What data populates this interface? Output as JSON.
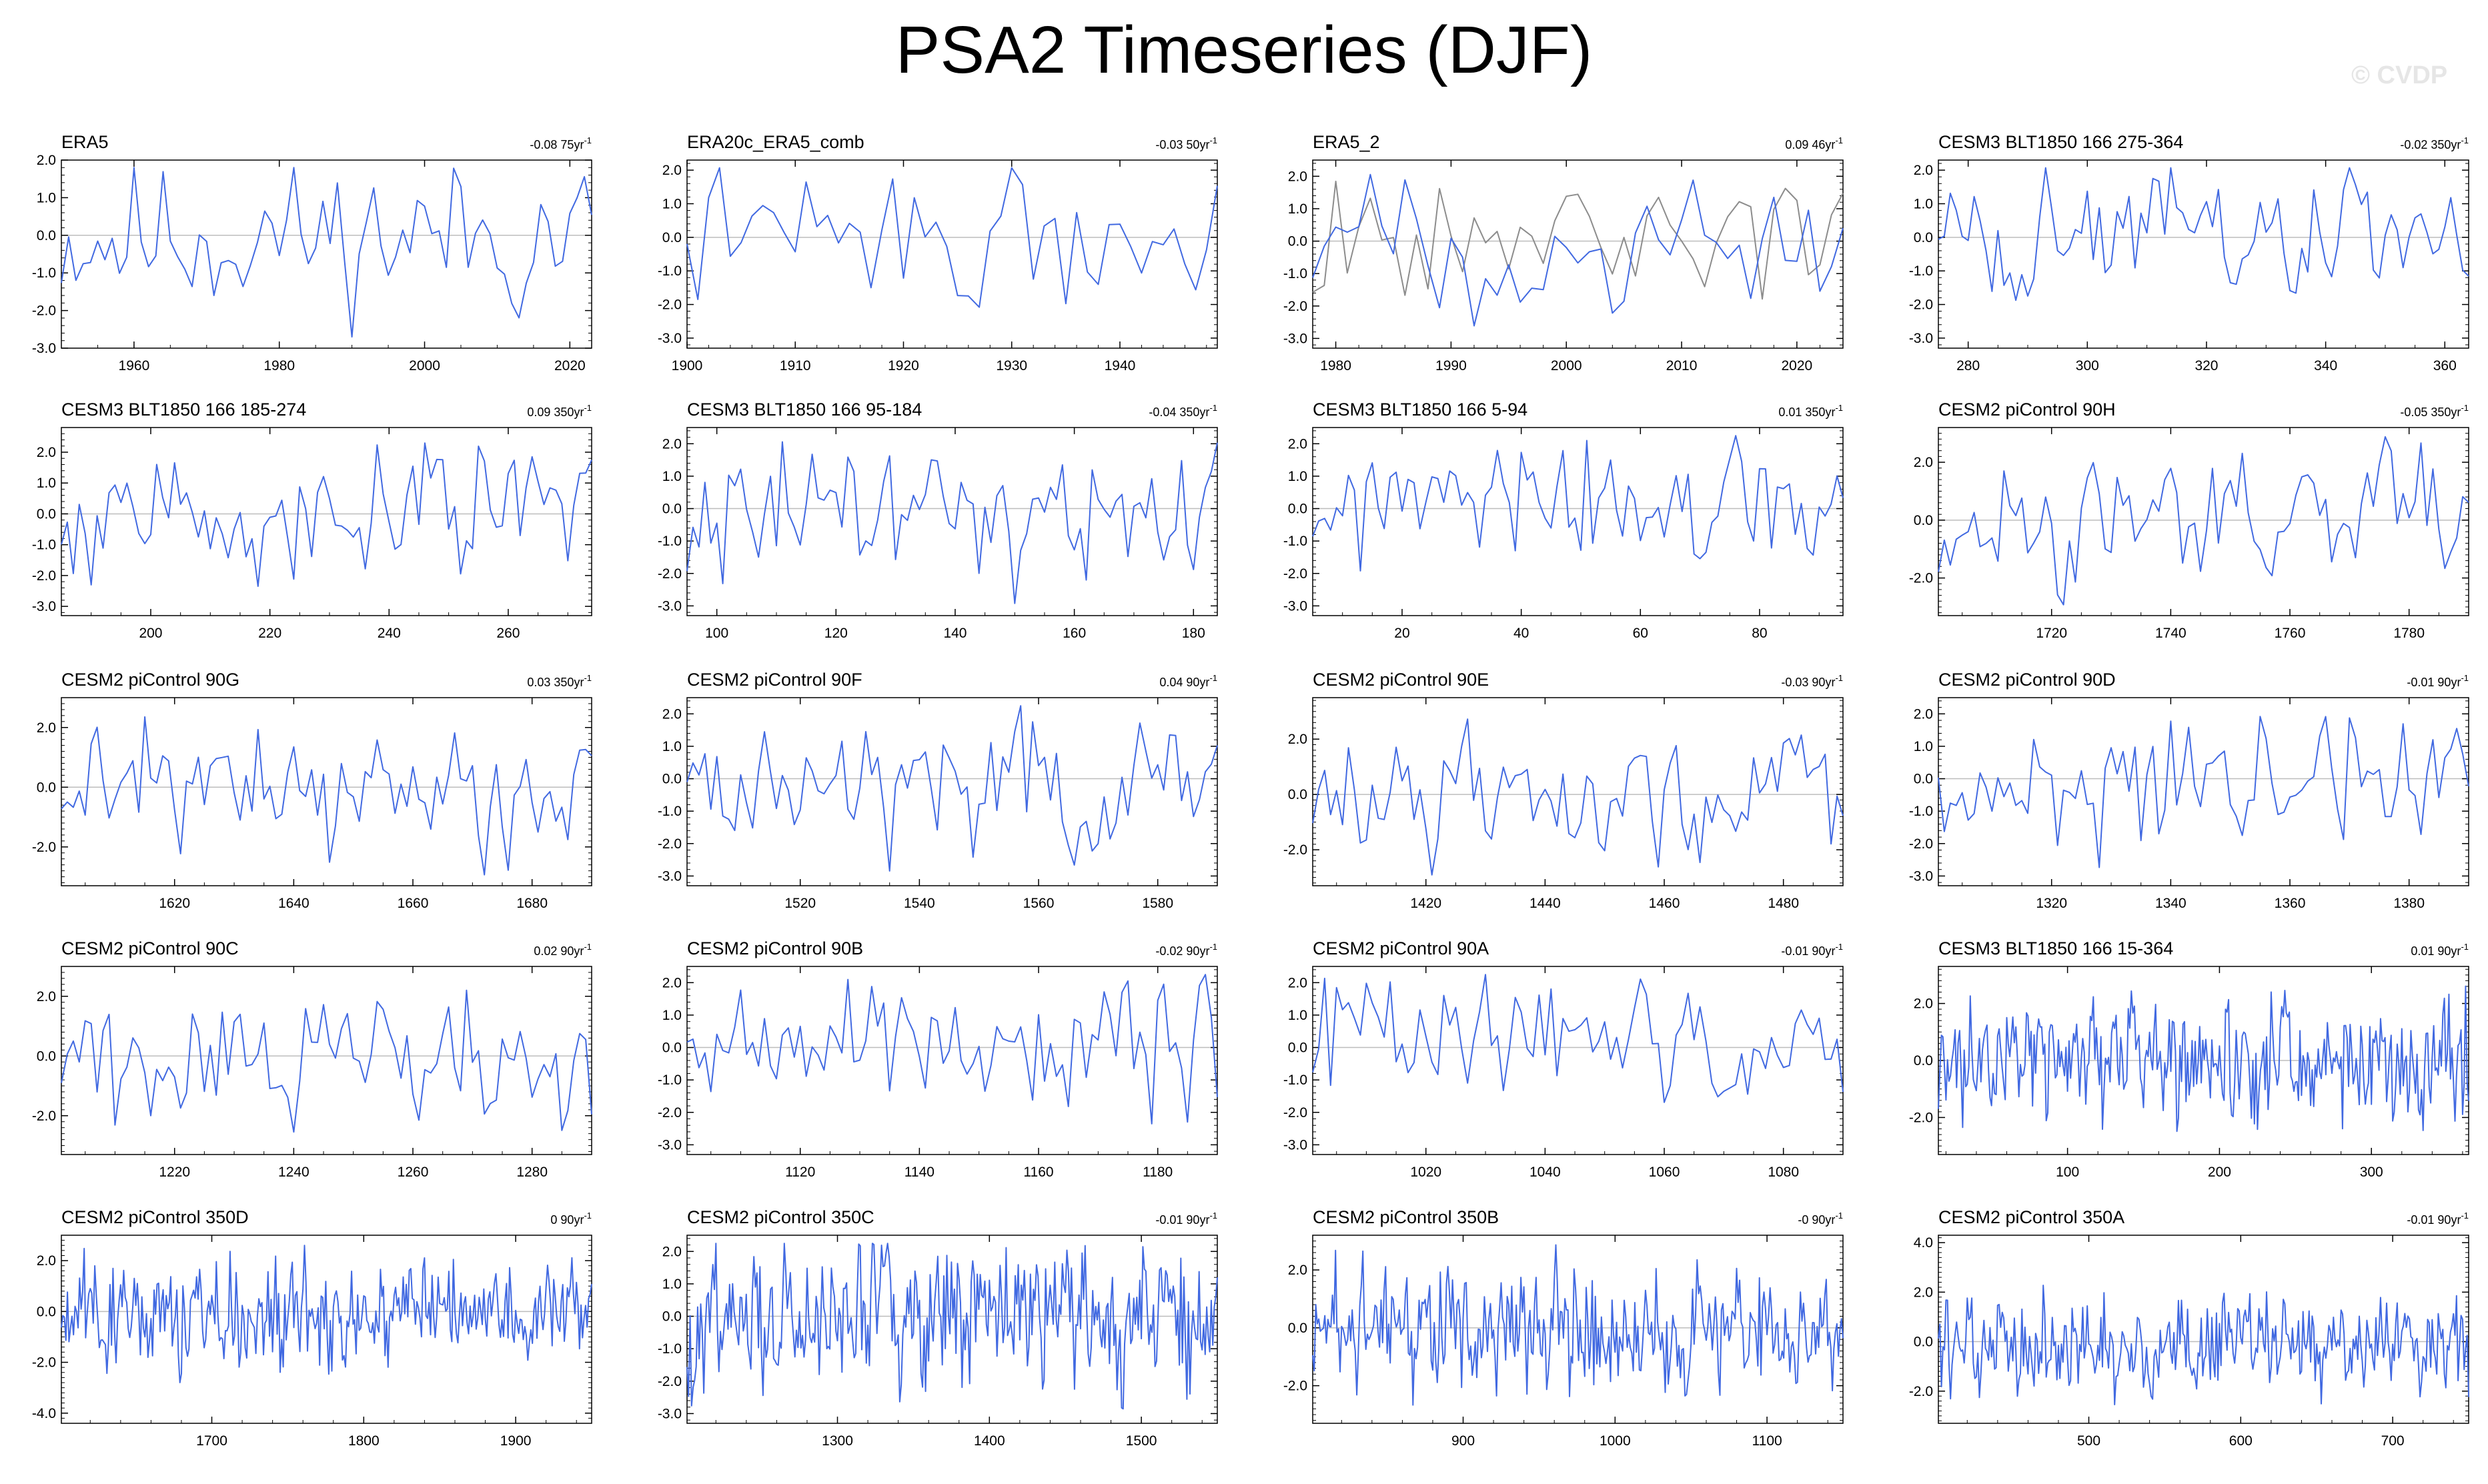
{
  "title": "PSA2 Timeseries (DJF)",
  "watermark": "© CVDP",
  "colors": {
    "line": "#4169e1",
    "obs_line": "#8c8c8c",
    "zero": "#bdbdbd",
    "axis": "#000000",
    "text": "#000000"
  },
  "chart_data": [
    {
      "type": "line",
      "title": "ERA5",
      "trend": "-0.08 75yr",
      "xlim": [
        1950,
        2023
      ],
      "ylim": [
        -3,
        2
      ],
      "yticks": [
        2,
        1,
        0,
        -1,
        -2,
        -3
      ],
      "ylabels": [
        "2.0",
        "1.0",
        "0.0",
        "-1.0",
        "-2.0",
        "-3.0"
      ],
      "xticks": [
        1960,
        1980,
        2000,
        2020
      ],
      "n": 74,
      "seed": 11
    },
    {
      "type": "line",
      "title": "ERA20c_ERA5_comb",
      "trend": "-0.03 50yr",
      "xlim": [
        1900,
        1949
      ],
      "ylim": [
        -3.3,
        2.3
      ],
      "yticks": [
        2,
        1,
        0,
        -1,
        -2,
        -3
      ],
      "ylabels": [
        "2.0",
        "1.0",
        "0.0",
        "-1.0",
        "-2.0",
        "-3.0"
      ],
      "xticks": [
        1900,
        1910,
        1920,
        1930,
        1940
      ],
      "n": 50,
      "seed": 22
    },
    {
      "type": "line",
      "title": "ERA5_2",
      "trend": "0.09 46yr",
      "xlim": [
        1978,
        2024
      ],
      "ylim": [
        -3.3,
        2.5
      ],
      "yticks": [
        2,
        1,
        0,
        -1,
        -2,
        -3
      ],
      "ylabels": [
        "2.0",
        "1.0",
        "0.0",
        "-1.0",
        "-2.0",
        "-3.0"
      ],
      "xticks": [
        1980,
        1990,
        2000,
        2010,
        2020
      ],
      "n": 47,
      "seed": 33,
      "obs_seed": 34
    },
    {
      "type": "line",
      "title": "CESM3 BLT1850 166 275-364",
      "trend": "-0.02 350yr",
      "xlim": [
        275,
        364
      ],
      "ylim": [
        -3.3,
        2.3
      ],
      "yticks": [
        2,
        1,
        0,
        -1,
        -2,
        -3
      ],
      "ylabels": [
        "2.0",
        "1.0",
        "0.0",
        "-1.0",
        "-2.0",
        "-3.0"
      ],
      "xticks": [
        280,
        300,
        320,
        340,
        360
      ],
      "n": 90,
      "seed": 44
    },
    {
      "type": "line",
      "title": "CESM3 BLT1850 166 185-274",
      "trend": "0.09 350yr",
      "xlim": [
        185,
        274
      ],
      "ylim": [
        -3.3,
        2.8
      ],
      "yticks": [
        2,
        1,
        0,
        -1,
        -2,
        -3
      ],
      "ylabels": [
        "2.0",
        "1.0",
        "0.0",
        "-1.0",
        "-2.0",
        "-3.0"
      ],
      "xticks": [
        200,
        220,
        240,
        260
      ],
      "n": 90,
      "seed": 55
    },
    {
      "type": "line",
      "title": "CESM3 BLT1850 166 95-184",
      "trend": "-0.04 350yr",
      "xlim": [
        95,
        184
      ],
      "ylim": [
        -3.3,
        2.5
      ],
      "yticks": [
        2,
        1,
        0,
        -1,
        -2,
        -3
      ],
      "ylabels": [
        "2.0",
        "1.0",
        "0.0",
        "-1.0",
        "-2.0",
        "-3.0"
      ],
      "xticks": [
        100,
        120,
        140,
        160,
        180
      ],
      "n": 90,
      "seed": 66
    },
    {
      "type": "line",
      "title": "CESM3 BLT1850 166 5-94",
      "trend": "0.01 350yr",
      "xlim": [
        5,
        94
      ],
      "ylim": [
        -3.3,
        2.5
      ],
      "yticks": [
        2,
        1,
        0,
        -1,
        -2,
        -3
      ],
      "ylabels": [
        "2.0",
        "1.0",
        "0.0",
        "-1.0",
        "-2.0",
        "-3.0"
      ],
      "xticks": [
        20,
        40,
        60,
        80
      ],
      "n": 90,
      "seed": 77
    },
    {
      "type": "line",
      "title": "CESM2 piControl 90H",
      "trend": "-0.05 350yr",
      "xlim": [
        1701,
        1790
      ],
      "ylim": [
        -3.3,
        3.2
      ],
      "yticks": [
        2,
        0,
        -2
      ],
      "ylabels": [
        "2.0",
        "0.0",
        "-2.0"
      ],
      "xticks": [
        1720,
        1740,
        1760,
        1780
      ],
      "n": 90,
      "seed": 88
    },
    {
      "type": "line",
      "title": "CESM2 piControl 90G",
      "trend": "0.03 350yr",
      "xlim": [
        1601,
        1690
      ],
      "ylim": [
        -3.3,
        3.0
      ],
      "yticks": [
        2,
        0,
        -2
      ],
      "ylabels": [
        "2.0",
        "0.0",
        "-2.0"
      ],
      "xticks": [
        1620,
        1640,
        1660,
        1680
      ],
      "n": 90,
      "seed": 99
    },
    {
      "type": "line",
      "title": "CESM2 piControl 90F",
      "trend": "0.04 90yr",
      "xlim": [
        1501,
        1590
      ],
      "ylim": [
        -3.3,
        2.5
      ],
      "yticks": [
        2,
        1,
        0,
        -1,
        -2,
        -3
      ],
      "ylabels": [
        "2.0",
        "1.0",
        "0.0",
        "-1.0",
        "-2.0",
        "-3.0"
      ],
      "xticks": [
        1520,
        1540,
        1560,
        1580
      ],
      "n": 90,
      "seed": 111
    },
    {
      "type": "line",
      "title": "CESM2 piControl 90E",
      "trend": "-0.03 90yr",
      "xlim": [
        1401,
        1490
      ],
      "ylim": [
        -3.3,
        3.5
      ],
      "yticks": [
        2,
        0,
        -2
      ],
      "ylabels": [
        "2.0",
        "0.0",
        "-2.0"
      ],
      "xticks": [
        1420,
        1440,
        1460,
        1480
      ],
      "n": 90,
      "seed": 122
    },
    {
      "type": "line",
      "title": "CESM2 piControl 90D",
      "trend": "-0.01 90yr",
      "xlim": [
        1301,
        1390
      ],
      "ylim": [
        -3.3,
        2.5
      ],
      "yticks": [
        2,
        1,
        0,
        -1,
        -2,
        -3
      ],
      "ylabels": [
        "2.0",
        "1.0",
        "0.0",
        "-1.0",
        "-2.0",
        "-3.0"
      ],
      "xticks": [
        1320,
        1340,
        1360,
        1380
      ],
      "n": 90,
      "seed": 133
    },
    {
      "type": "line",
      "title": "CESM2 piControl 90C",
      "trend": "0.02 90yr",
      "xlim": [
        1201,
        1290
      ],
      "ylim": [
        -3.3,
        3.0
      ],
      "yticks": [
        2,
        0,
        -2
      ],
      "ylabels": [
        "2.0",
        "0.0",
        "-2.0"
      ],
      "xticks": [
        1220,
        1240,
        1260,
        1280
      ],
      "n": 90,
      "seed": 144
    },
    {
      "type": "line",
      "title": "CESM2 piControl 90B",
      "trend": "-0.02 90yr",
      "xlim": [
        1101,
        1190
      ],
      "ylim": [
        -3.3,
        2.5
      ],
      "yticks": [
        2,
        1,
        0,
        -1,
        -2,
        -3
      ],
      "ylabels": [
        "2.0",
        "1.0",
        "0.0",
        "-1.0",
        "-2.0",
        "-3.0"
      ],
      "xticks": [
        1120,
        1140,
        1160,
        1180
      ],
      "n": 90,
      "seed": 155
    },
    {
      "type": "line",
      "title": "CESM2 piControl 90A",
      "trend": "-0.01 90yr",
      "xlim": [
        1001,
        1090
      ],
      "ylim": [
        -3.3,
        2.5
      ],
      "yticks": [
        2,
        1,
        0,
        -1,
        -2,
        -3
      ],
      "ylabels": [
        "2.0",
        "1.0",
        "0.0",
        "-1.0",
        "-2.0",
        "-3.0"
      ],
      "xticks": [
        1020,
        1040,
        1060,
        1080
      ],
      "n": 90,
      "seed": 166
    },
    {
      "type": "line",
      "title": "CESM3 BLT1850 166 15-364",
      "trend": "0.01 90yr",
      "xlim": [
        15,
        364
      ],
      "ylim": [
        -3.3,
        3.3
      ],
      "yticks": [
        2,
        0,
        -2
      ],
      "ylabels": [
        "2.0",
        "0.0",
        "-2.0"
      ],
      "xticks": [
        100,
        200,
        300
      ],
      "n": 350,
      "seed": 177
    },
    {
      "type": "line",
      "title": "CESM2 piControl 350D",
      "trend": "0 90yr",
      "xlim": [
        1601,
        1950
      ],
      "ylim": [
        -4.4,
        3.0
      ],
      "yticks": [
        2,
        0,
        -2,
        -4
      ],
      "ylabels": [
        "2.0",
        "0.0",
        "-2.0",
        "-4.0"
      ],
      "xticks": [
        1700,
        1800,
        1900
      ],
      "n": 350,
      "seed": 188
    },
    {
      "type": "line",
      "title": "CESM2 piControl 350C",
      "trend": "-0.01 90yr",
      "xlim": [
        1201,
        1550
      ],
      "ylim": [
        -3.3,
        2.5
      ],
      "yticks": [
        2,
        1,
        0,
        -1,
        -2,
        -3
      ],
      "ylabels": [
        "2.0",
        "1.0",
        "0.0",
        "-1.0",
        "-2.0",
        "-3.0"
      ],
      "xticks": [
        1300,
        1400,
        1500
      ],
      "n": 350,
      "seed": 199
    },
    {
      "type": "line",
      "title": "CESM2 piControl 350B",
      "trend": "-0 90yr",
      "xlim": [
        801,
        1150
      ],
      "ylim": [
        -3.3,
        3.2
      ],
      "yticks": [
        2,
        0,
        -2
      ],
      "ylabels": [
        "2.0",
        "0.0",
        "-2.0"
      ],
      "xticks": [
        900,
        1000,
        1100
      ],
      "n": 350,
      "seed": 211
    },
    {
      "type": "line",
      "title": "CESM2 piControl 350A",
      "trend": "-0.01 90yr",
      "xlim": [
        401,
        750
      ],
      "ylim": [
        -3.3,
        4.3
      ],
      "yticks": [
        4,
        2,
        0,
        -2
      ],
      "ylabels": [
        "4.0",
        "2.0",
        "0.0",
        "-2.0"
      ],
      "xticks": [
        500,
        600,
        700
      ],
      "n": 350,
      "seed": 222
    }
  ]
}
